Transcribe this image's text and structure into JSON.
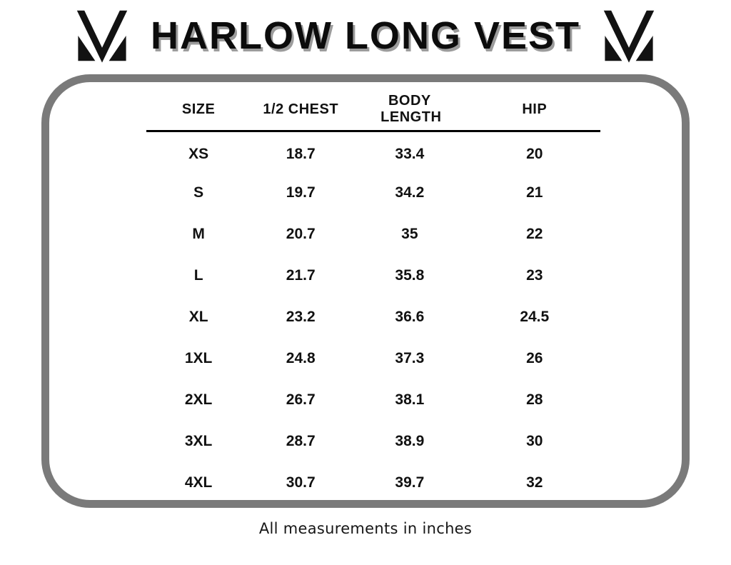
{
  "title": "HARLOW LONG VEST",
  "logos": {
    "left": "brand-monogram",
    "right": "brand-monogram"
  },
  "table": {
    "headers": [
      "SIZE",
      "1/2 CHEST",
      "BODY LENGTH",
      "HIP"
    ],
    "rows": [
      [
        "XS",
        "18.7",
        "33.4",
        "20"
      ],
      [
        "S",
        "19.7",
        "34.2",
        "21"
      ],
      [
        "M",
        "20.7",
        "35",
        "22"
      ],
      [
        "L",
        "21.7",
        "35.8",
        "23"
      ],
      [
        "XL",
        "23.2",
        "36.6",
        "24.5"
      ],
      [
        "1XL",
        "24.8",
        "37.3",
        "26"
      ],
      [
        "2XL",
        "26.7",
        "38.1",
        "28"
      ],
      [
        "3XL",
        "28.7",
        "38.9",
        "30"
      ],
      [
        "4XL",
        "30.7",
        "39.7",
        "32"
      ]
    ]
  },
  "footnote": "All measurements in inches",
  "colors": {
    "text": "#111111",
    "title_shadow": "#9c9c9c",
    "box_border": "#7a7a7a",
    "background": "#ffffff",
    "header_rule": "#000000"
  }
}
